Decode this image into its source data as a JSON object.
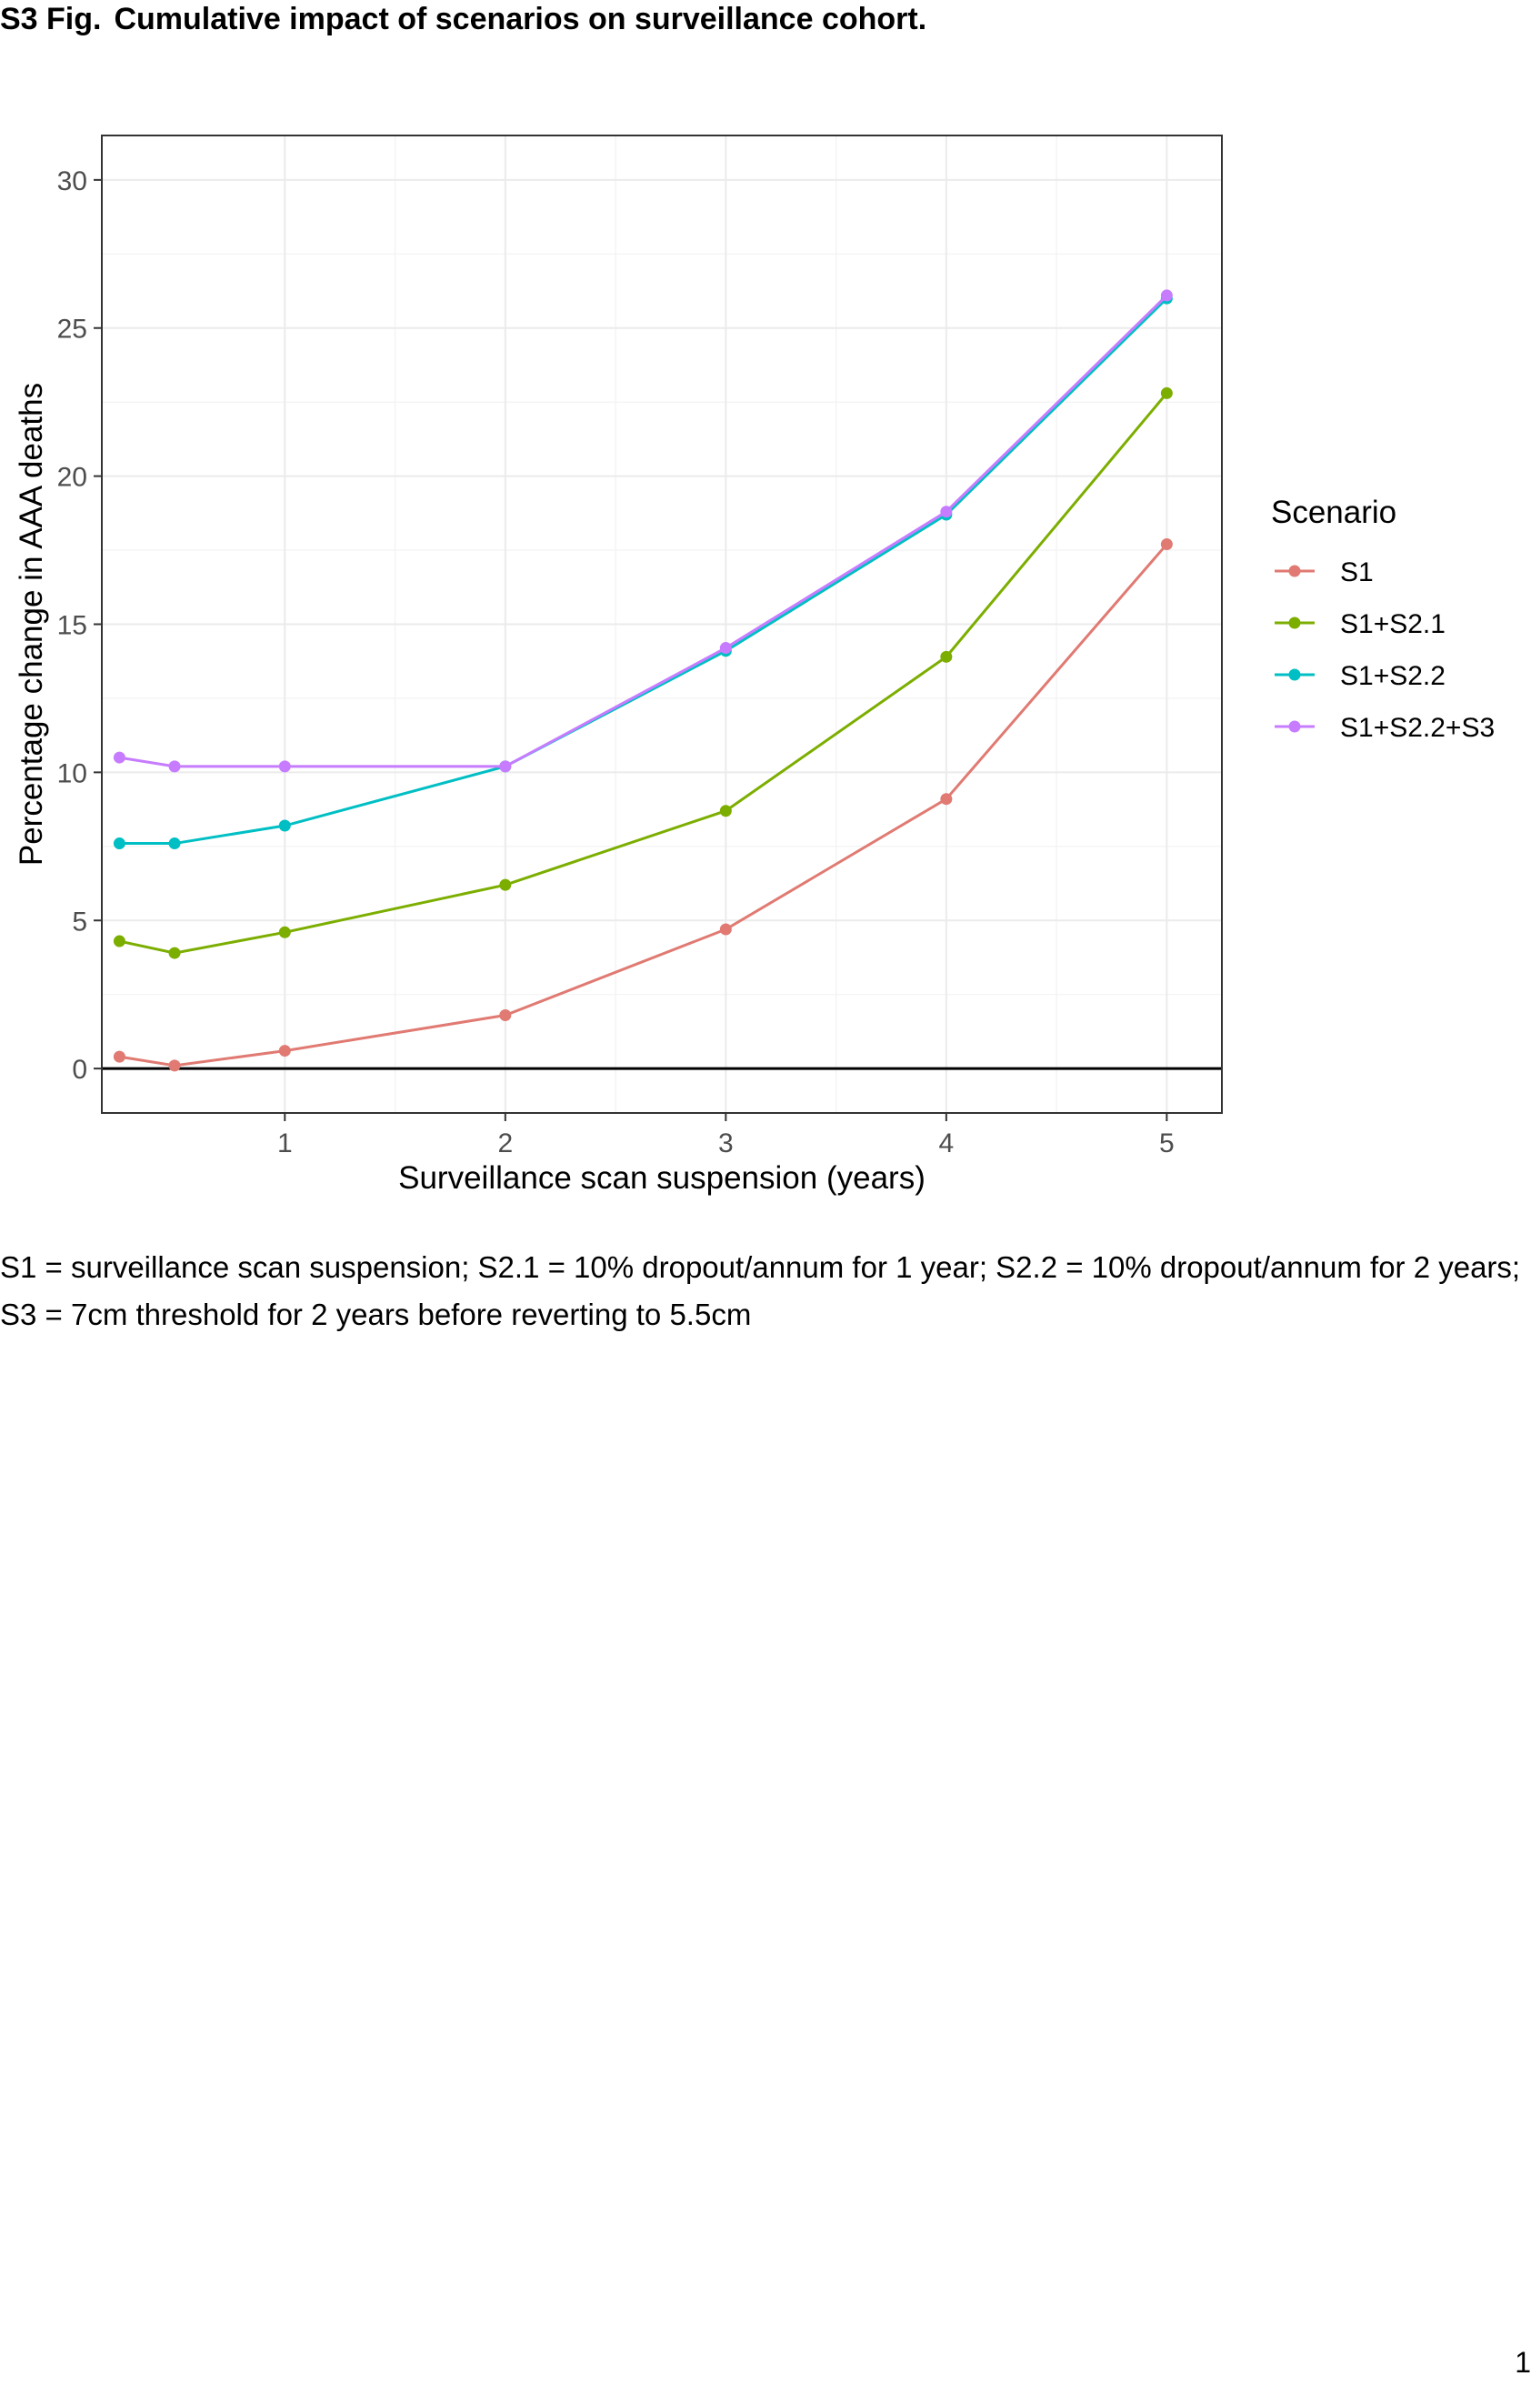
{
  "figure": {
    "label": "S3 Fig.",
    "title": "Cumulative impact of scenarios on surveillance cohort."
  },
  "caption": "S1 = surveillance scan suspension; S2.1 = 10% dropout/annum for 1 year; S2.2 = 10% dropout/annum for 2 years; S3 = 7cm threshold for 2 years before reverting to 5.5cm",
  "page_number": "1",
  "chart_data": {
    "type": "line",
    "title": "",
    "xlabel": "Surveillance scan suspension (years)",
    "ylabel": "Percentage change in AAA deaths",
    "xlim": [
      0.17,
      5.25
    ],
    "ylim": [
      -1.5,
      31.5
    ],
    "x_ticks": [
      1,
      2,
      3,
      4,
      5
    ],
    "y_ticks": [
      0,
      5,
      10,
      15,
      20,
      25,
      30
    ],
    "grid": true,
    "reference_line_y": 0,
    "legend": {
      "title": "Scenario",
      "position": "right"
    },
    "x": [
      0.25,
      0.5,
      1,
      2,
      3,
      4,
      5
    ],
    "series": [
      {
        "name": "S1",
        "color": "#e07a72",
        "values": [
          0.4,
          0.1,
          0.6,
          1.8,
          4.7,
          9.1,
          17.7
        ]
      },
      {
        "name": "S1+S2.1",
        "color": "#7cae00",
        "values": [
          4.3,
          3.9,
          4.6,
          6.2,
          8.7,
          13.9,
          22.8
        ]
      },
      {
        "name": "S1+S2.2",
        "color": "#00bfc4",
        "values": [
          7.6,
          7.6,
          8.2,
          10.2,
          14.1,
          18.7,
          26.0
        ]
      },
      {
        "name": "S1+S2.2+S3",
        "color": "#c77cff",
        "values": [
          10.5,
          10.2,
          10.2,
          10.2,
          14.2,
          18.8,
          26.1
        ]
      }
    ]
  }
}
